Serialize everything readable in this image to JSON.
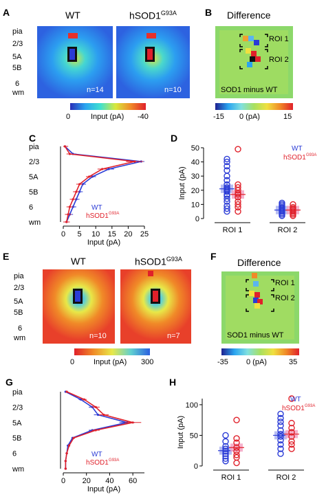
{
  "panels": {
    "A": {
      "label": "A",
      "wt_title": "WT",
      "mut_title": "hSOD1",
      "mut_sup": "G93A",
      "layers": [
        "pia",
        "2/3",
        "5A",
        "5B",
        "6",
        "wm"
      ],
      "wt_n": "n=14",
      "mut_n": "n=10",
      "colorbar": {
        "min": "0",
        "unit": "Input (pA)",
        "max": "-40"
      }
    },
    "B": {
      "label": "B",
      "title": "Difference",
      "roi1": "ROI 1",
      "roi2": "ROI 2",
      "caption": "SOD1 minus WT",
      "colorbar": {
        "min": "-15",
        "mid": "0 (pA)",
        "max": "15"
      }
    },
    "C": {
      "label": "C",
      "layers": [
        "pia",
        "2/3",
        "5A",
        "5B",
        "6",
        "wm"
      ],
      "legend_wt": "WT",
      "legend_mut": "hSOD1",
      "legend_sup": "G93A",
      "xlabel": "Input (pA)",
      "xticks": [
        "0",
        "5",
        "10",
        "15",
        "20",
        "25"
      ]
    },
    "D": {
      "label": "D",
      "ylabel": "Input (pA)",
      "yticks": [
        "0",
        "10",
        "20",
        "30",
        "40",
        "50"
      ],
      "legend_wt": "WT",
      "legend_mut": "hSOD1",
      "legend_sup": "G93A",
      "groups": [
        "ROI 1",
        "ROI 2"
      ]
    },
    "E": {
      "label": "E",
      "wt_title": "WT",
      "mut_title": "hSOD1",
      "mut_sup": "G93A",
      "layers": [
        "pia",
        "2/3",
        "5A",
        "5B",
        "6",
        "wm"
      ],
      "wt_n": "n=10",
      "mut_n": "n=7",
      "colorbar": {
        "min": "0",
        "unit": "Input (pA)",
        "max": "300"
      }
    },
    "F": {
      "label": "F",
      "title": "Difference",
      "roi1": "ROI 1",
      "roi2": "ROI 2",
      "caption": "SOD1 minus WT",
      "colorbar": {
        "min": "-35",
        "mid": "0 (pA)",
        "max": "35"
      }
    },
    "G": {
      "label": "G",
      "layers": [
        "pia",
        "2/3",
        "5A",
        "5B",
        "6",
        "wm"
      ],
      "legend_wt": "WT",
      "legend_mut": "hSOD1",
      "legend_sup": "G93A",
      "xlabel": "Input (pA)",
      "xticks": [
        "0",
        "20",
        "40",
        "60"
      ]
    },
    "H": {
      "label": "H",
      "ylabel": "Input (pA)",
      "yticks": [
        "0",
        "50",
        "100"
      ],
      "legend_wt": "WT",
      "legend_mut": "hSOD1",
      "legend_sup": "G93A",
      "groups": [
        "ROI 1",
        "ROI 2"
      ]
    }
  },
  "chart_data": [
    {
      "type": "line",
      "panel": "C",
      "x_label": "Input (pA)",
      "xlim": [
        0,
        25
      ],
      "y": [
        "pia",
        "",
        "2/3",
        "",
        "5A",
        "",
        "5B",
        "",
        "6",
        "",
        "wm"
      ],
      "series": [
        {
          "name": "WT",
          "color": "#2a3bd6",
          "values": [
            0.5,
            3,
            24,
            14,
            9,
            6,
            5,
            4,
            3,
            2,
            1
          ]
        },
        {
          "name": "hSOD1 G93A",
          "color": "#e0202a",
          "values": [
            0.5,
            2,
            22,
            12,
            8,
            5,
            4,
            3,
            2,
            1.5,
            1
          ]
        }
      ]
    },
    {
      "type": "scatter",
      "panel": "D",
      "ylabel": "Input (pA)",
      "ylim": [
        0,
        50
      ],
      "categories": [
        "ROI 1",
        "ROI 2"
      ],
      "series": [
        {
          "name": "WT",
          "color": "#2a3bd6",
          "means": [
            21,
            6
          ],
          "points": [
            [
              5,
              7,
              9,
              12,
              14,
              16,
              17,
              19,
              20,
              21,
              22,
              24,
              27,
              30,
              34,
              37,
              40,
              42
            ],
            [
              2,
              3,
              4,
              5,
              6,
              7,
              8,
              9,
              10,
              11
            ]
          ]
        },
        {
          "name": "hSOD1 G93A",
          "color": "#e0202a",
          "means": [
            17,
            6
          ],
          "points": [
            [
              5,
              8,
              10,
              12,
              15,
              17,
              18,
              20,
              22,
              24,
              49
            ],
            [
              2,
              3,
              4,
              5,
              6,
              7,
              8,
              10
            ]
          ]
        }
      ]
    },
    {
      "type": "line",
      "panel": "G",
      "x_label": "Input (pA)",
      "xlim": [
        0,
        70
      ],
      "y": [
        "pia",
        "",
        "2/3",
        "",
        "5A",
        "",
        "5B",
        "",
        "6",
        "",
        "wm"
      ],
      "series": [
        {
          "name": "WT",
          "color": "#2a3bd6",
          "values": [
            2,
            15,
            25,
            30,
            55,
            25,
            8,
            4,
            3,
            2,
            2
          ]
        },
        {
          "name": "hSOD1 G93A",
          "color": "#e0202a",
          "values": [
            3,
            18,
            28,
            35,
            60,
            28,
            9,
            5,
            3,
            2,
            2
          ]
        }
      ]
    },
    {
      "type": "scatter",
      "panel": "H",
      "ylabel": "Input (pA)",
      "ylim": [
        0,
        110
      ],
      "categories": [
        "ROI 1",
        "ROI 2"
      ],
      "series": [
        {
          "name": "WT",
          "color": "#2a3bd6",
          "means": [
            25,
            50
          ],
          "points": [
            [
              8,
              12,
              16,
              20,
              24,
              28,
              32,
              40,
              50
            ],
            [
              20,
              28,
              35,
              42,
              48,
              52,
              58,
              66,
              72,
              78,
              85
            ]
          ]
        },
        {
          "name": "hSOD1 G93A",
          "color": "#e0202a",
          "means": [
            30,
            52
          ],
          "points": [
            [
              5,
              14,
              18,
              24,
              30,
              38,
              45,
              75
            ],
            [
              28,
              35,
              40,
              48,
              55,
              62,
              70,
              110
            ]
          ]
        }
      ]
    }
  ],
  "colors": {
    "wt": "#2a3bd6",
    "mut": "#e0202a",
    "wt_fill": "#aab2f0",
    "mut_fill": "#f3a4c4"
  }
}
